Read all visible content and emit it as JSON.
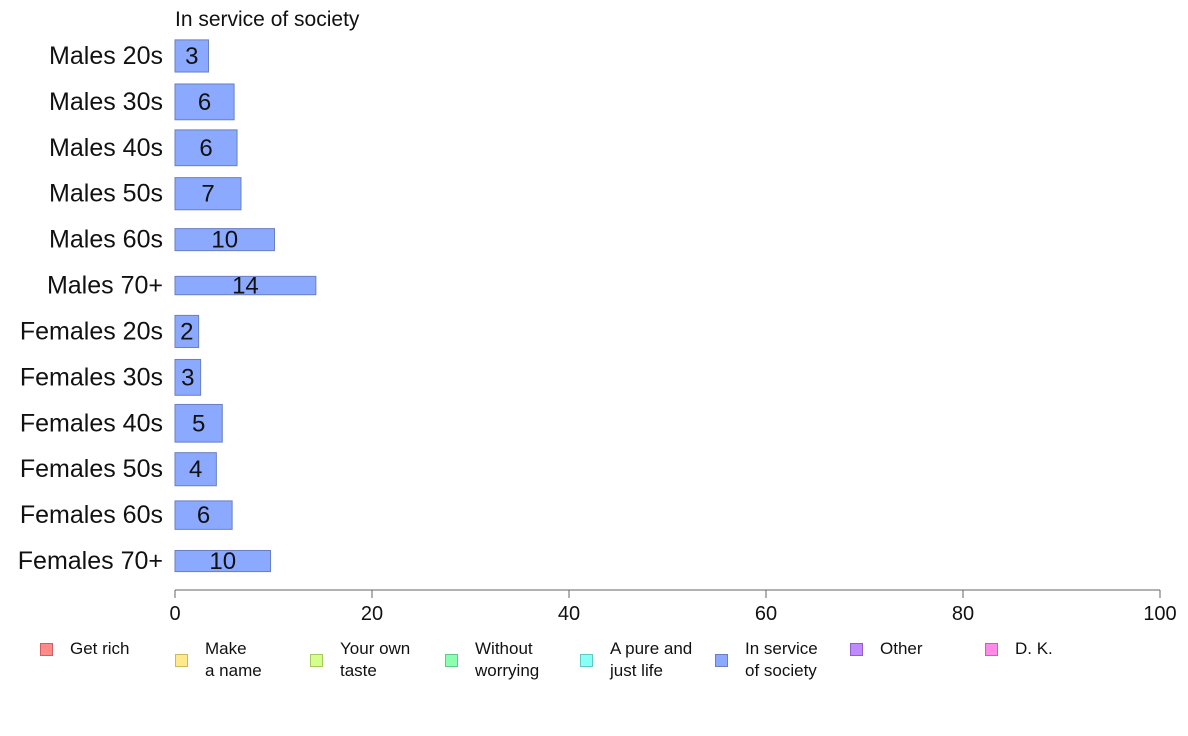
{
  "chart_data": {
    "type": "bar",
    "orientation": "horizontal",
    "title": "In service of society",
    "categories": [
      "Males 20s",
      "Males 30s",
      "Males 40s",
      "Males 50s",
      "Males 60s",
      "Males 70+",
      "Females 20s",
      "Females 30s",
      "Females 40s",
      "Females 50s",
      "Females 60s",
      "Females 70+"
    ],
    "values": [
      3.4,
      6.0,
      6.3,
      6.7,
      10.1,
      14.3,
      2.4,
      2.6,
      4.8,
      4.2,
      5.8,
      9.7
    ],
    "data_labels": [
      "3",
      "6",
      "6",
      "7",
      "10",
      "14",
      "2",
      "3",
      "5",
      "4",
      "6",
      "10"
    ],
    "relative_bar_thickness": [
      0.7,
      0.78,
      0.78,
      0.7,
      0.48,
      0.4,
      0.7,
      0.78,
      0.82,
      0.72,
      0.62,
      0.46
    ],
    "bar_color": "#8aa9ff",
    "bar_edge_color": "#6a7fbf",
    "xlim": [
      0,
      100
    ],
    "xticks": [
      0,
      20,
      40,
      60,
      80,
      100
    ],
    "xlabel": "",
    "ylabel": "",
    "grid": false,
    "legend_position": "bottom",
    "legend": [
      {
        "name": "Get rich",
        "color": "#ff8a8a",
        "edge": "#d06060"
      },
      {
        "name": "Make\na name",
        "color": "#ffe98a",
        "edge": "#c9b860"
      },
      {
        "name": "Your own\ntaste",
        "color": "#d4ff8a",
        "edge": "#a6c860"
      },
      {
        "name": "Without\nworrying",
        "color": "#8affb0",
        "edge": "#60c888"
      },
      {
        "name": "A pure and\njust life",
        "color": "#8afff8",
        "edge": "#60c8c2"
      },
      {
        "name": "In service\nof society",
        "color": "#8aa9ff",
        "edge": "#6a7fbf"
      },
      {
        "name": "Other",
        "color": "#c08aff",
        "edge": "#9460c8"
      },
      {
        "name": "D. K.",
        "color": "#ff8ae8",
        "edge": "#c860b4"
      }
    ]
  }
}
